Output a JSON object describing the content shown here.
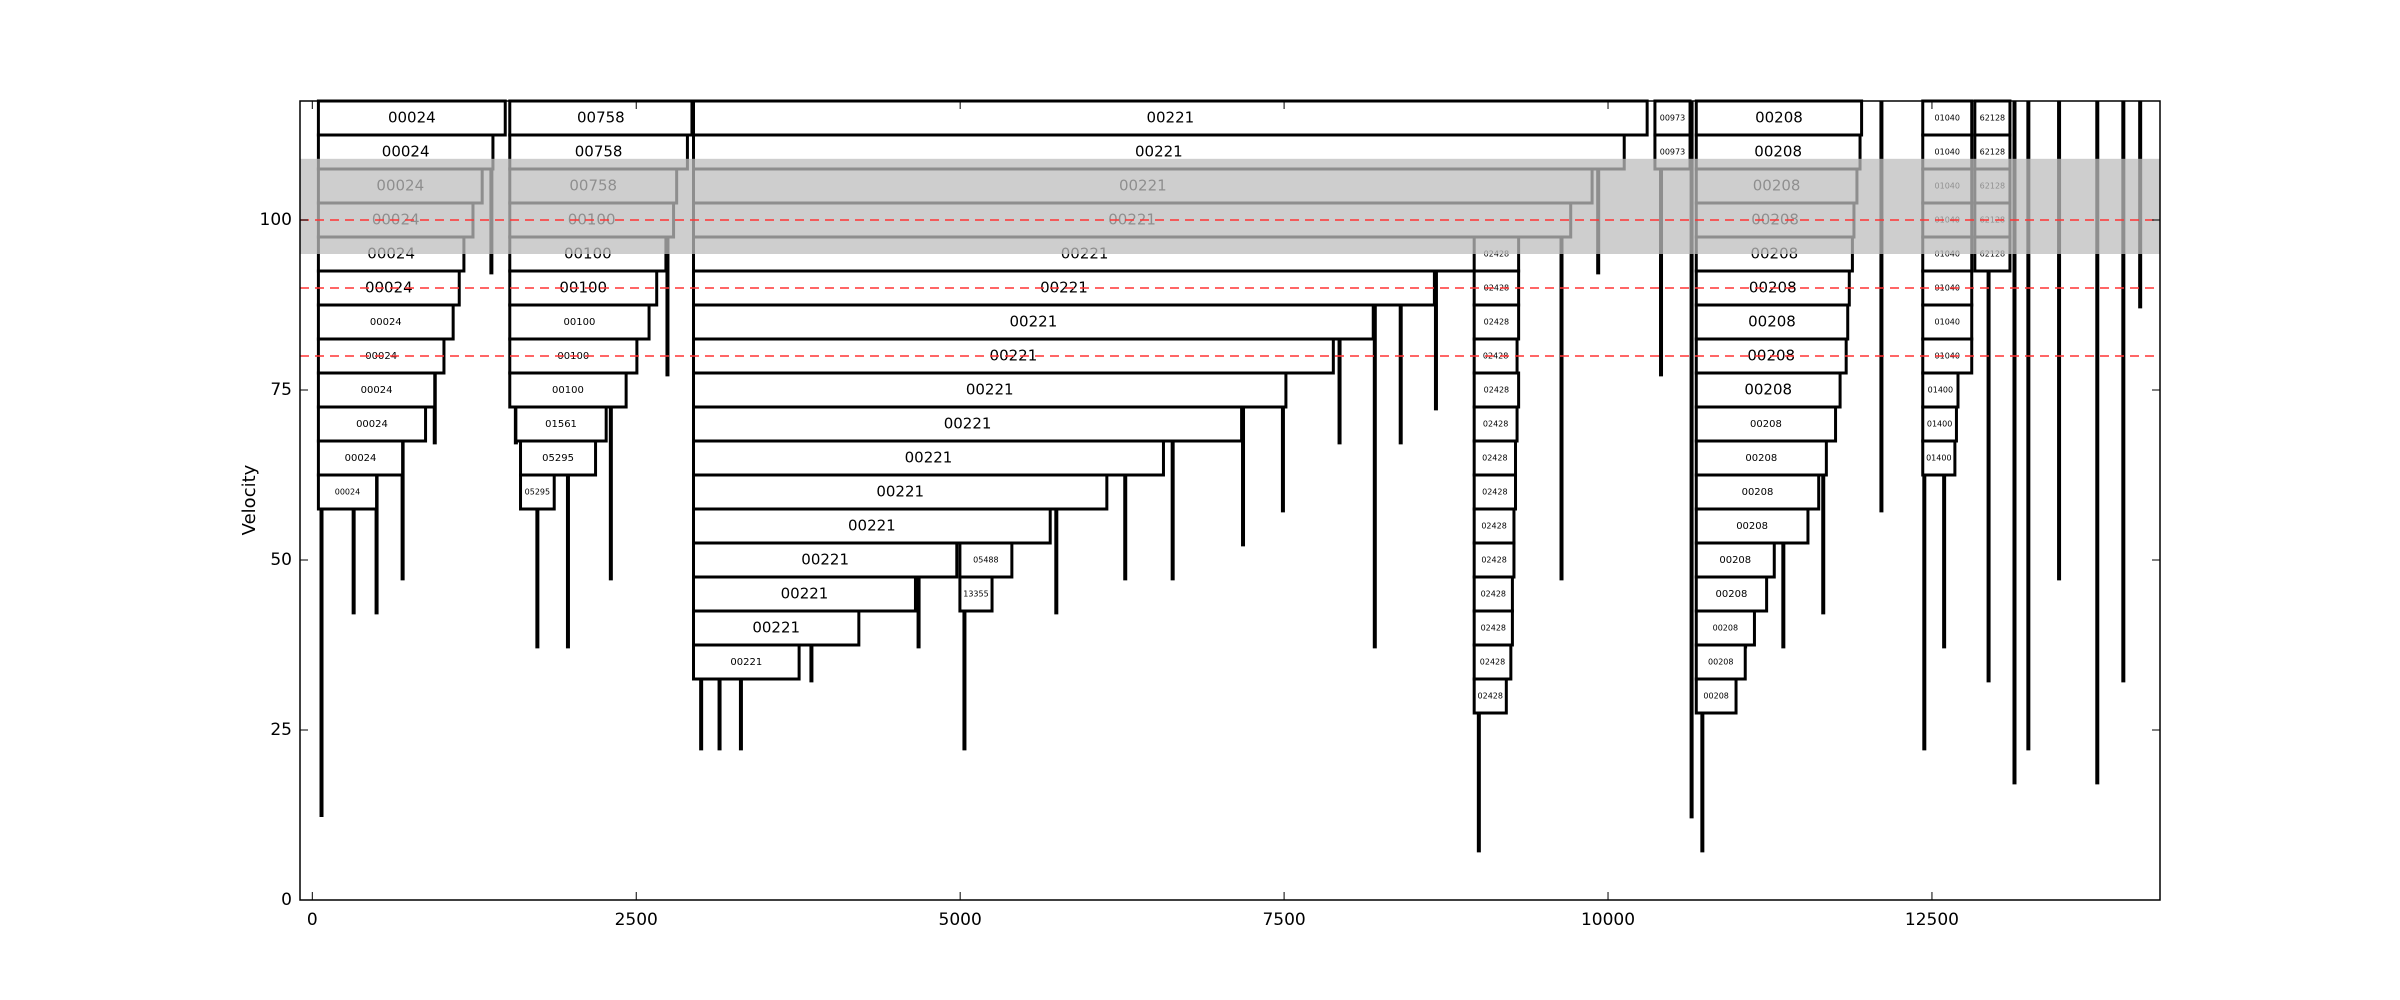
{
  "chart_data": {
    "type": "icicle",
    "ylabel": "Velocity",
    "xlim": [
      -95,
      14260
    ],
    "ylim": [
      0,
      117.5
    ],
    "xticks": [
      0,
      2500,
      5000,
      7500,
      10000,
      12500
    ],
    "yticks": [
      0,
      25,
      50,
      75,
      100
    ],
    "block_height": 5,
    "band": [
      95,
      109
    ],
    "band_color": "#bdbdbd",
    "hlines": [
      80,
      90,
      100
    ],
    "hline_color": "#ff3333",
    "blocks": [
      {
        "label": "00024",
        "y": 115,
        "x0": 47,
        "x1": 1489
      },
      {
        "label": "00024",
        "y": 110,
        "x0": 47,
        "x1": 1394
      },
      {
        "label": "00024",
        "y": 105,
        "x0": 47,
        "x1": 1311
      },
      {
        "label": "00024",
        "y": 100,
        "x0": 47,
        "x1": 1240
      },
      {
        "label": "00024",
        "y": 95,
        "x0": 47,
        "x1": 1170
      },
      {
        "label": "00024",
        "y": 90,
        "x0": 47,
        "x1": 1134
      },
      {
        "label": "00024",
        "y": 85,
        "x0": 47,
        "x1": 1087
      },
      {
        "label": "00024",
        "y": 80,
        "x0": 47,
        "x1": 1016
      },
      {
        "label": "00024",
        "y": 75,
        "x0": 47,
        "x1": 945
      },
      {
        "label": "00024",
        "y": 70,
        "x0": 47,
        "x1": 874
      },
      {
        "label": "00024",
        "y": 65,
        "x0": 47,
        "x1": 697
      },
      {
        "label": "00024",
        "y": 60,
        "x0": 47,
        "x1": 496
      },
      {
        "label": "00758",
        "y": 115,
        "x0": 1524,
        "x1": 2930
      },
      {
        "label": "00758",
        "y": 110,
        "x0": 1524,
        "x1": 2895
      },
      {
        "label": "00758",
        "y": 105,
        "x0": 1524,
        "x1": 2812
      },
      {
        "label": "00100",
        "y": 100,
        "x0": 1524,
        "x1": 2788
      },
      {
        "label": "00100",
        "y": 95,
        "x0": 1524,
        "x1": 2729
      },
      {
        "label": "00100",
        "y": 90,
        "x0": 1524,
        "x1": 2658
      },
      {
        "label": "00100",
        "y": 85,
        "x0": 1524,
        "x1": 2599
      },
      {
        "label": "00100",
        "y": 80,
        "x0": 1524,
        "x1": 2505
      },
      {
        "label": "00100",
        "y": 75,
        "x0": 1524,
        "x1": 2422
      },
      {
        "label": "01561",
        "y": 70,
        "x0": 1571,
        "x1": 2268
      },
      {
        "label": "05295",
        "y": 65,
        "x0": 1607,
        "x1": 2186
      },
      {
        "label": "05295",
        "y": 60,
        "x0": 1607,
        "x1": 1867
      },
      {
        "label": "00221",
        "y": 115,
        "x0": 2942,
        "x1": 10302
      },
      {
        "label": "00221",
        "y": 110,
        "x0": 2942,
        "x1": 10125
      },
      {
        "label": "00221",
        "y": 105,
        "x0": 2942,
        "x1": 9877
      },
      {
        "label": "00221",
        "y": 100,
        "x0": 2942,
        "x1": 9712
      },
      {
        "label": "00221",
        "y": 95,
        "x0": 2942,
        "x1": 8979
      },
      {
        "label": "00221",
        "y": 90,
        "x0": 2942,
        "x1": 8660
      },
      {
        "label": "00221",
        "y": 85,
        "x0": 2942,
        "x1": 8188
      },
      {
        "label": "00221",
        "y": 80,
        "x0": 2942,
        "x1": 7880
      },
      {
        "label": "00221",
        "y": 75,
        "x0": 2942,
        "x1": 7514
      },
      {
        "label": "00221",
        "y": 70,
        "x0": 2942,
        "x1": 7172
      },
      {
        "label": "00221",
        "y": 65,
        "x0": 2942,
        "x1": 6569
      },
      {
        "label": "00221",
        "y": 60,
        "x0": 2942,
        "x1": 6132
      },
      {
        "label": "00221",
        "y": 55,
        "x0": 2942,
        "x1": 5695
      },
      {
        "label": "00221",
        "y": 50,
        "x0": 2942,
        "x1": 4974
      },
      {
        "label": "00221",
        "y": 45,
        "x0": 2942,
        "x1": 4655
      },
      {
        "label": "00221",
        "y": 40,
        "x0": 2942,
        "x1": 4218
      },
      {
        "label": "00221",
        "y": 35,
        "x0": 2942,
        "x1": 3757
      },
      {
        "label": "05488",
        "y": 50,
        "x0": 4998,
        "x1": 5399
      },
      {
        "label": "13355",
        "y": 45,
        "x0": 4998,
        "x1": 5246
      },
      {
        "label": "00973",
        "y": 115,
        "x0": 10362,
        "x1": 10633
      },
      {
        "label": "00973",
        "y": 110,
        "x0": 10362,
        "x1": 10633
      },
      {
        "label": "02428",
        "y": 95,
        "x0": 8967,
        "x1": 9310
      },
      {
        "label": "02428",
        "y": 90,
        "x0": 8967,
        "x1": 9310
      },
      {
        "label": "02428",
        "y": 85,
        "x0": 8967,
        "x1": 9310
      },
      {
        "label": "02428",
        "y": 80,
        "x0": 8967,
        "x1": 9298
      },
      {
        "label": "02428",
        "y": 75,
        "x0": 8967,
        "x1": 9310
      },
      {
        "label": "02428",
        "y": 70,
        "x0": 8967,
        "x1": 9298
      },
      {
        "label": "02428",
        "y": 65,
        "x0": 8967,
        "x1": 9286
      },
      {
        "label": "02428",
        "y": 60,
        "x0": 8967,
        "x1": 9286
      },
      {
        "label": "02428",
        "y": 55,
        "x0": 8967,
        "x1": 9274
      },
      {
        "label": "02428",
        "y": 50,
        "x0": 8967,
        "x1": 9274
      },
      {
        "label": "02428",
        "y": 45,
        "x0": 8967,
        "x1": 9262
      },
      {
        "label": "02428",
        "y": 40,
        "x0": 8967,
        "x1": 9262
      },
      {
        "label": "02428",
        "y": 35,
        "x0": 8967,
        "x1": 9250
      },
      {
        "label": "02428",
        "y": 30,
        "x0": 8967,
        "x1": 9215
      },
      {
        "label": "00208",
        "y": 115,
        "x0": 10681,
        "x1": 11957
      },
      {
        "label": "00208",
        "y": 110,
        "x0": 10681,
        "x1": 11945
      },
      {
        "label": "00208",
        "y": 105,
        "x0": 10681,
        "x1": 11921
      },
      {
        "label": "00208",
        "y": 100,
        "x0": 10681,
        "x1": 11898
      },
      {
        "label": "00208",
        "y": 95,
        "x0": 10681,
        "x1": 11886
      },
      {
        "label": "00208",
        "y": 90,
        "x0": 10681,
        "x1": 11862
      },
      {
        "label": "00208",
        "y": 85,
        "x0": 10681,
        "x1": 11850
      },
      {
        "label": "00208",
        "y": 80,
        "x0": 10681,
        "x1": 11838
      },
      {
        "label": "00208",
        "y": 75,
        "x0": 10681,
        "x1": 11791
      },
      {
        "label": "00208",
        "y": 70,
        "x0": 10681,
        "x1": 11756
      },
      {
        "label": "00208",
        "y": 65,
        "x0": 10681,
        "x1": 11685
      },
      {
        "label": "00208",
        "y": 60,
        "x0": 10681,
        "x1": 11626
      },
      {
        "label": "00208",
        "y": 55,
        "x0": 10681,
        "x1": 11543
      },
      {
        "label": "00208",
        "y": 50,
        "x0": 10681,
        "x1": 11283
      },
      {
        "label": "00208",
        "y": 45,
        "x0": 10681,
        "x1": 11224
      },
      {
        "label": "00208",
        "y": 40,
        "x0": 10681,
        "x1": 11130
      },
      {
        "label": "00208",
        "y": 35,
        "x0": 10681,
        "x1": 11059
      },
      {
        "label": "00208",
        "y": 30,
        "x0": 10681,
        "x1": 10988
      },
      {
        "label": "01040",
        "y": 115,
        "x0": 12429,
        "x1": 12807
      },
      {
        "label": "01040",
        "y": 110,
        "x0": 12429,
        "x1": 12807
      },
      {
        "label": "01040",
        "y": 105,
        "x0": 12429,
        "x1": 12807
      },
      {
        "label": "01040",
        "y": 100,
        "x0": 12429,
        "x1": 12807
      },
      {
        "label": "01040",
        "y": 95,
        "x0": 12429,
        "x1": 12807
      },
      {
        "label": "01040",
        "y": 90,
        "x0": 12429,
        "x1": 12807
      },
      {
        "label": "01040",
        "y": 85,
        "x0": 12429,
        "x1": 12807
      },
      {
        "label": "01040",
        "y": 80,
        "x0": 12429,
        "x1": 12807
      },
      {
        "label": "01400",
        "y": 75,
        "x0": 12429,
        "x1": 12701
      },
      {
        "label": "01400",
        "y": 70,
        "x0": 12429,
        "x1": 12689
      },
      {
        "label": "01400",
        "y": 65,
        "x0": 12429,
        "x1": 12677
      },
      {
        "label": "62128",
        "y": 115,
        "x0": 12831,
        "x1": 13102
      },
      {
        "label": "62128",
        "y": 110,
        "x0": 12831,
        "x1": 13102
      },
      {
        "label": "62128",
        "y": 105,
        "x0": 12831,
        "x1": 13102
      },
      {
        "label": "62128",
        "y": 100,
        "x0": 12831,
        "x1": 13102
      },
      {
        "label": "62128",
        "y": 95,
        "x0": 12831,
        "x1": 13102
      }
    ],
    "spikes": [
      {
        "x": 71,
        "y": 12.2
      },
      {
        "x": 319,
        "y": 42
      },
      {
        "x": 496,
        "y": 42
      },
      {
        "x": 697,
        "y": 47
      },
      {
        "x": 945,
        "y": 67
      },
      {
        "x": 1382,
        "y": 92
      },
      {
        "x": 1571,
        "y": 67
      },
      {
        "x": 1737,
        "y": 37
      },
      {
        "x": 1973,
        "y": 37
      },
      {
        "x": 2304,
        "y": 47
      },
      {
        "x": 2741,
        "y": 77
      },
      {
        "x": 3001,
        "y": 22
      },
      {
        "x": 3143,
        "y": 22
      },
      {
        "x": 3308,
        "y": 22
      },
      {
        "x": 3852,
        "y": 32
      },
      {
        "x": 4679,
        "y": 37
      },
      {
        "x": 5033,
        "y": 22
      },
      {
        "x": 5742,
        "y": 42
      },
      {
        "x": 6274,
        "y": 47
      },
      {
        "x": 6640,
        "y": 47
      },
      {
        "x": 7183,
        "y": 52
      },
      {
        "x": 7491,
        "y": 57
      },
      {
        "x": 7928,
        "y": 67
      },
      {
        "x": 8200,
        "y": 37
      },
      {
        "x": 8400,
        "y": 67
      },
      {
        "x": 8672,
        "y": 72
      },
      {
        "x": 9003,
        "y": 7
      },
      {
        "x": 9641,
        "y": 47
      },
      {
        "x": 9924,
        "y": 92
      },
      {
        "x": 10409,
        "y": 77
      },
      {
        "x": 10645,
        "y": 12
      },
      {
        "x": 10728,
        "y": 7
      },
      {
        "x": 11058,
        "y": 37
      },
      {
        "x": 11353,
        "y": 37
      },
      {
        "x": 11661,
        "y": 42
      },
      {
        "x": 12110,
        "y": 57
      },
      {
        "x": 12441,
        "y": 22
      },
      {
        "x": 12594,
        "y": 37
      },
      {
        "x": 12937,
        "y": 32
      },
      {
        "x": 13137,
        "y": 17
      },
      {
        "x": 13244,
        "y": 22
      },
      {
        "x": 13481,
        "y": 47
      },
      {
        "x": 13776,
        "y": 17
      },
      {
        "x": 13977,
        "y": 32
      },
      {
        "x": 14107,
        "y": 87
      }
    ]
  }
}
